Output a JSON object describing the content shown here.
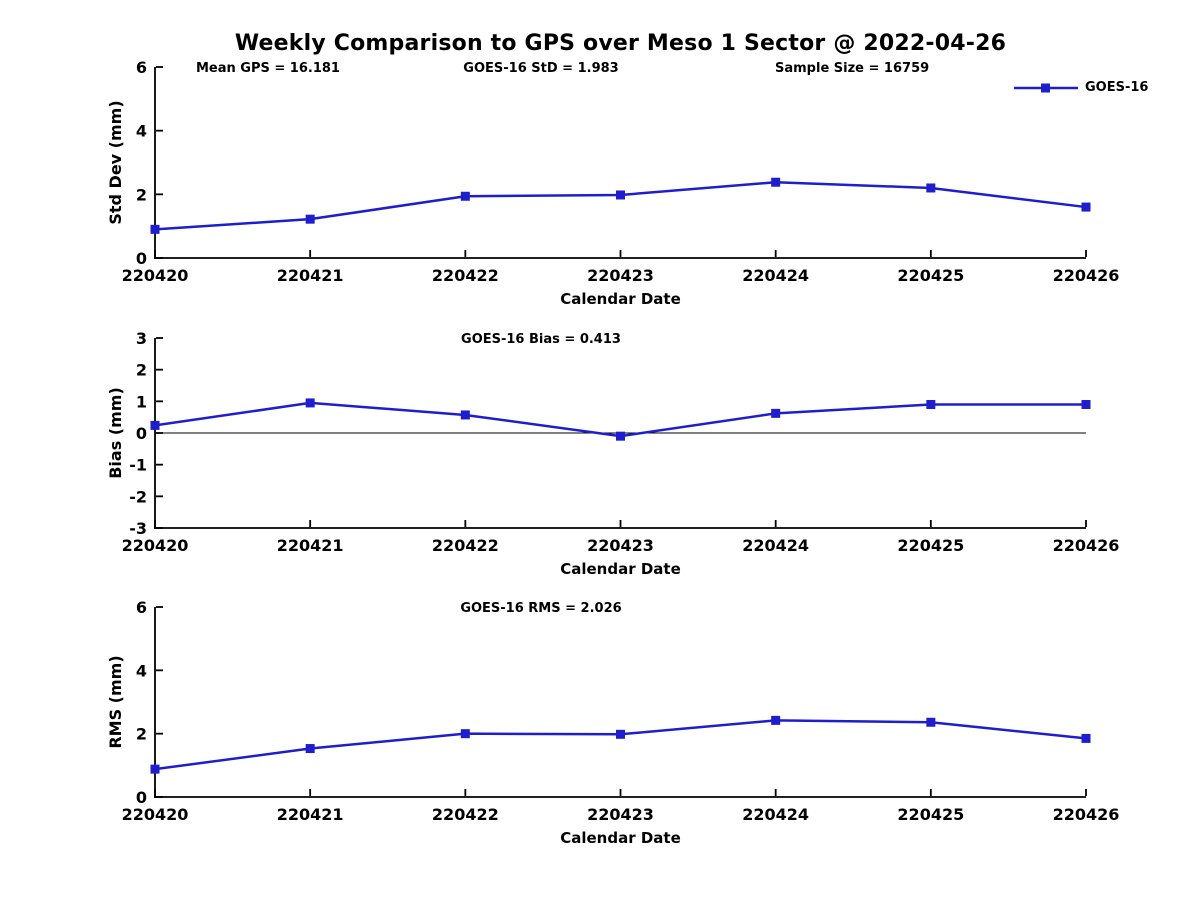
{
  "title": "Weekly Comparison to GPS over Meso 1 Sector @ 2022-04-26",
  "header_annotations": {
    "mean_gps": "Mean GPS = 16.181",
    "goes16_std": "GOES-16 StD = 1.983",
    "sample_size": "Sample Size = 16759"
  },
  "legend": {
    "label": "GOES-16",
    "position": "top-right",
    "marker": "square"
  },
  "colors": {
    "series": "#1e1ecd",
    "axis": "#000000",
    "zero_line": "#000000",
    "background": "#ffffff",
    "text": "#000000"
  },
  "chart_data": [
    {
      "type": "line",
      "subplot": "std-dev",
      "x": [
        "220420",
        "220421",
        "220422",
        "220423",
        "220424",
        "220425",
        "220426"
      ],
      "xlabel": "Calendar Date",
      "ylabel": "Std Dev (mm)",
      "ylim": [
        0,
        6
      ],
      "yticks": [
        0,
        2,
        4,
        6
      ],
      "grid": false,
      "zero_line": false,
      "annotation": "",
      "series": [
        {
          "name": "GOES-16",
          "marker": "square",
          "values": [
            0.9,
            1.22,
            1.94,
            1.98,
            2.38,
            2.2,
            1.6
          ]
        }
      ]
    },
    {
      "type": "line",
      "subplot": "bias",
      "x": [
        "220420",
        "220421",
        "220422",
        "220423",
        "220424",
        "220425",
        "220426"
      ],
      "xlabel": "Calendar Date",
      "ylabel": "Bias (mm)",
      "ylim": [
        -3,
        3
      ],
      "yticks": [
        3,
        2,
        1,
        0,
        -1,
        -2,
        -3
      ],
      "grid": false,
      "zero_line": true,
      "annotation": "GOES-16 Bias  = 0.413",
      "series": [
        {
          "name": "GOES-16",
          "marker": "square",
          "values": [
            0.24,
            0.95,
            0.57,
            -0.1,
            0.62,
            0.9,
            0.9
          ]
        }
      ]
    },
    {
      "type": "line",
      "subplot": "rms",
      "x": [
        "220420",
        "220421",
        "220422",
        "220423",
        "220424",
        "220425",
        "220426"
      ],
      "xlabel": "Calendar Date",
      "ylabel": "RMS (mm)",
      "ylim": [
        0,
        6
      ],
      "yticks": [
        0,
        2,
        4,
        6
      ],
      "grid": false,
      "zero_line": false,
      "annotation": "GOES-16 RMS = 2.026",
      "series": [
        {
          "name": "GOES-16",
          "marker": "square",
          "values": [
            0.88,
            1.53,
            2.0,
            1.98,
            2.42,
            2.36,
            1.85
          ]
        }
      ]
    }
  ]
}
